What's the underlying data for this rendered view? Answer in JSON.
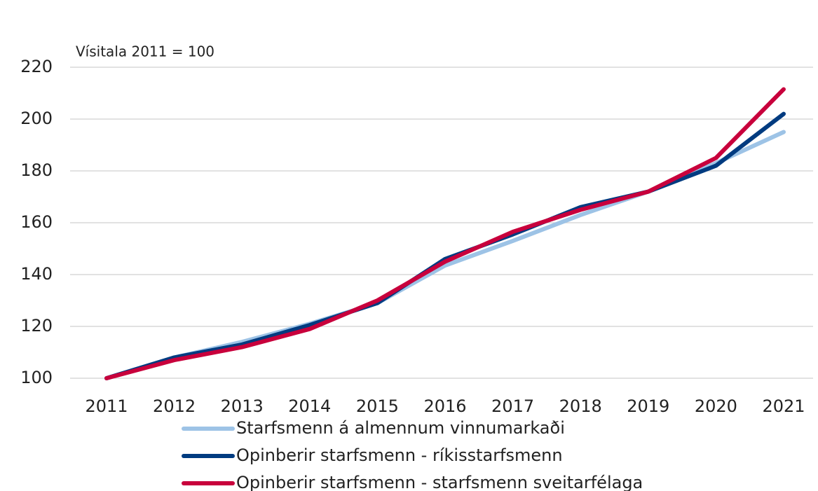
{
  "chart_data": {
    "type": "line",
    "y_label": "Vísitala 2011 = 100",
    "categories": [
      "2011",
      "2012",
      "2013",
      "2014",
      "2015",
      "2016",
      "2017",
      "2018",
      "2019",
      "2020",
      "2021"
    ],
    "series": [
      {
        "name": "Starfsmenn á almennum vinnumarkaði",
        "color": "#9dc3e6",
        "values": [
          100,
          108,
          114,
          121,
          129,
          143.5,
          153,
          163,
          172,
          183,
          195
        ]
      },
      {
        "name": "Opinberir starfsmenn - ríkisstarfsmenn",
        "color": "#003b80",
        "values": [
          100,
          108,
          113,
          120.5,
          129,
          146,
          155.5,
          166,
          172,
          182,
          202
        ]
      },
      {
        "name": "Opinberir starfsmenn - starfsmenn sveitarfélaga",
        "color": "#c8003c",
        "values": [
          100,
          107,
          112,
          119,
          130,
          145,
          156.5,
          165,
          172,
          185,
          211.5
        ]
      }
    ],
    "ylim": [
      100,
      220
    ],
    "yticks": [
      100,
      120,
      140,
      160,
      180,
      200,
      220
    ],
    "grid": true
  }
}
